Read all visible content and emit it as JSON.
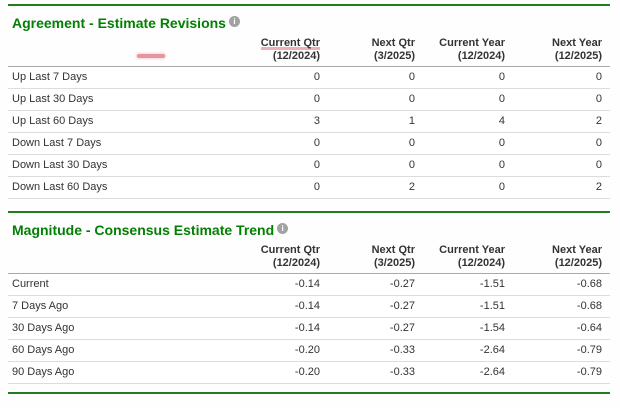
{
  "colors": {
    "accent_green_text": "#028002",
    "green_rule": "#1e7d1e",
    "pink_annotation": "#e794a1",
    "row_divider": "#dcdcdc",
    "header_divider": "#a9a9a9"
  },
  "icons": {
    "info": "i"
  },
  "columns": [
    {
      "label": "Current Qtr",
      "period": "(12/2024)"
    },
    {
      "label": "Next Qtr",
      "period": "(3/2025)"
    },
    {
      "label": "Current Year",
      "period": "(12/2024)"
    },
    {
      "label": "Next Year",
      "period": "(12/2025)"
    }
  ],
  "agreement": {
    "title": "Agreement - Estimate Revisions",
    "rows": [
      {
        "label": "Up Last 7 Days",
        "values": [
          "0",
          "0",
          "0",
          "0"
        ]
      },
      {
        "label": "Up Last 30 Days",
        "values": [
          "0",
          "0",
          "0",
          "0"
        ]
      },
      {
        "label": "Up Last 60 Days",
        "values": [
          "3",
          "1",
          "4",
          "2"
        ]
      },
      {
        "label": "Down Last 7 Days",
        "values": [
          "0",
          "0",
          "0",
          "0"
        ]
      },
      {
        "label": "Down Last 30 Days",
        "values": [
          "0",
          "0",
          "0",
          "0"
        ]
      },
      {
        "label": "Down Last 60 Days",
        "values": [
          "0",
          "2",
          "0",
          "2"
        ]
      }
    ]
  },
  "magnitude": {
    "title": "Magnitude - Consensus Estimate Trend",
    "rows": [
      {
        "label": "Current",
        "values": [
          "-0.14",
          "-0.27",
          "-1.51",
          "-0.68"
        ]
      },
      {
        "label": "7 Days Ago",
        "values": [
          "-0.14",
          "-0.27",
          "-1.51",
          "-0.68"
        ]
      },
      {
        "label": "30 Days Ago",
        "values": [
          "-0.14",
          "-0.27",
          "-1.54",
          "-0.64"
        ]
      },
      {
        "label": "60 Days Ago",
        "values": [
          "-0.20",
          "-0.33",
          "-2.64",
          "-0.79"
        ]
      },
      {
        "label": "90 Days Ago",
        "values": [
          "-0.20",
          "-0.33",
          "-2.64",
          "-0.79"
        ]
      }
    ]
  }
}
